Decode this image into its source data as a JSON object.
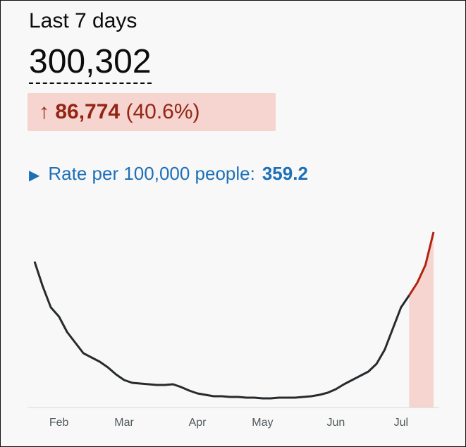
{
  "header": {
    "title": "Last 7 days",
    "total": "300,302",
    "change": "86,774",
    "change_percent": "(40.6%)"
  },
  "rate": {
    "label": "Rate per 100,000 people:",
    "value": "359.2"
  },
  "chart_data": {
    "type": "line",
    "categories": [
      null,
      null,
      null,
      "Feb",
      null,
      null,
      null,
      null,
      null,
      null,
      null,
      "Mar",
      null,
      null,
      null,
      null,
      null,
      null,
      null,
      null,
      "Apr",
      null,
      null,
      null,
      null,
      null,
      null,
      null,
      "May",
      null,
      null,
      null,
      null,
      null,
      null,
      null,
      null,
      "Jun",
      null,
      null,
      null,
      null,
      null,
      null,
      null,
      "Jul",
      null,
      null,
      null,
      null
    ],
    "values": [
      41400,
      34400,
      28400,
      25800,
      21400,
      18400,
      15400,
      14200,
      13000,
      11400,
      9400,
      7800,
      7000,
      6800,
      6600,
      6400,
      6400,
      6600,
      5800,
      4800,
      4000,
      3600,
      3200,
      3200,
      3000,
      3000,
      2800,
      2800,
      2600,
      2600,
      2800,
      2800,
      2800,
      3000,
      3200,
      3600,
      4200,
      5200,
      6600,
      7800,
      9000,
      10200,
      12400,
      16400,
      22400,
      28400,
      31800,
      35400,
      40400,
      49800
    ],
    "color": "#272b2e",
    "highlight": {
      "start": 46,
      "color": "#b1230f",
      "fill": "#f6d4d0"
    },
    "ylim": [
      0,
      52000
    ]
  }
}
